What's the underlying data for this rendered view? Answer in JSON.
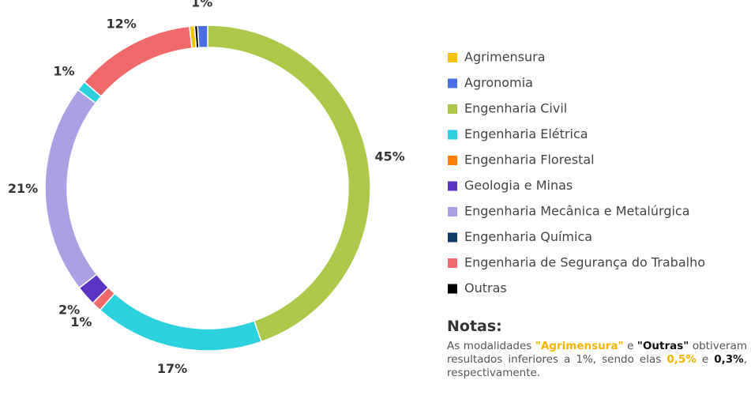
{
  "chart_data": {
    "type": "donut",
    "legend": [
      {
        "name": "Agrimensura",
        "color": "#f5c400"
      },
      {
        "name": "Agronomia",
        "color": "#4a6fe3"
      },
      {
        "name": "Engenharia Civil",
        "color": "#aec94a"
      },
      {
        "name": "Engenharia Elétrica",
        "color": "#2bd1dc"
      },
      {
        "name": "Engenharia Florestal",
        "color": "#ff7f00"
      },
      {
        "name": "Geologia e Minas",
        "color": "#5b34c4"
      },
      {
        "name": "Engenharia Mecânica e Metalúrgica",
        "color": "#ad9fe3"
      },
      {
        "name": "Engenharia Química",
        "color": "#0d3a66"
      },
      {
        "name": "Engenharia de Segurança do Trabalho",
        "color": "#f0696b"
      },
      {
        "name": "Outras",
        "color": "#000000"
      }
    ],
    "values": [
      45,
      17,
      1,
      2,
      21,
      1,
      12,
      0.5,
      0.3,
      1
    ],
    "value_labels": [
      "45%",
      "17%",
      "1%",
      "2%",
      "21%",
      "1%",
      "12%",
      null,
      null,
      "1%"
    ],
    "colors": [
      "#aec94a",
      "#2bd1dc",
      "#f0696b",
      "#5b34c4",
      "#ad9fe3",
      "#2bd1dc",
      "#f0696b",
      "#f5c400",
      "#000000",
      "#4a6fe3"
    ]
  },
  "notes": {
    "title": "Notas:",
    "parts": [
      "As modalidades ",
      "\"Agrimensura\"",
      " e ",
      "\"Outras\"",
      " obtiveram resultados inferiores a 1%, sendo elas ",
      "0,5%",
      " e ",
      "0,3%",
      ", respectivamente."
    ]
  }
}
